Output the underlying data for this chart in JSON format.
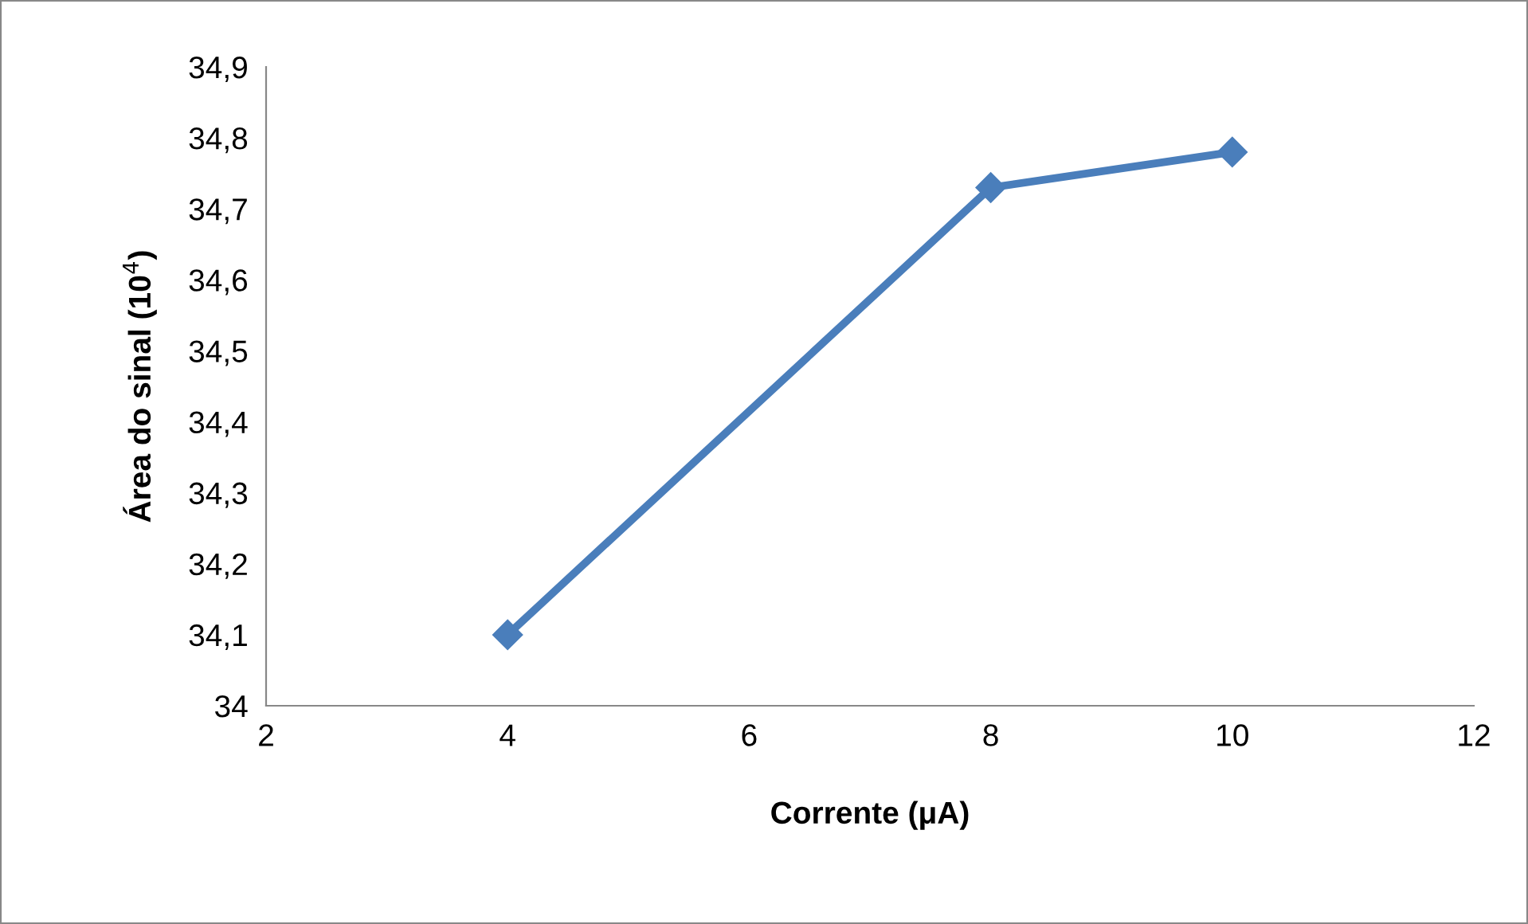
{
  "chart_data": {
    "type": "line",
    "xlabel": "Corrente (μA)",
    "ylabel": "Área do sinal (10$^{4}$)",
    "x": [
      4,
      8,
      10
    ],
    "series": [
      {
        "color": "#4a7ebb",
        "values": [
          34.1,
          34.73,
          34.78
        ]
      }
    ],
    "xlim": [
      2,
      12
    ],
    "xticks": [
      2,
      4,
      6,
      8,
      10,
      12
    ],
    "ylim": [
      34,
      34.9
    ],
    "yticks": [
      {
        "value": 34,
        "label": "34"
      },
      {
        "value": 34.1,
        "label": "34,1"
      },
      {
        "value": 34.2,
        "label": "34,2"
      },
      {
        "value": 34.3,
        "label": "34,3"
      },
      {
        "value": 34.4,
        "label": "34,4"
      },
      {
        "value": 34.5,
        "label": "34,5"
      },
      {
        "value": 34.6,
        "label": "34,6"
      },
      {
        "value": 34.7,
        "label": "34,7"
      },
      {
        "value": 34.8,
        "label": "34,8"
      },
      {
        "value": 34.9,
        "label": "34,9"
      }
    ],
    "marker": "diamond",
    "line_style": "solid"
  }
}
